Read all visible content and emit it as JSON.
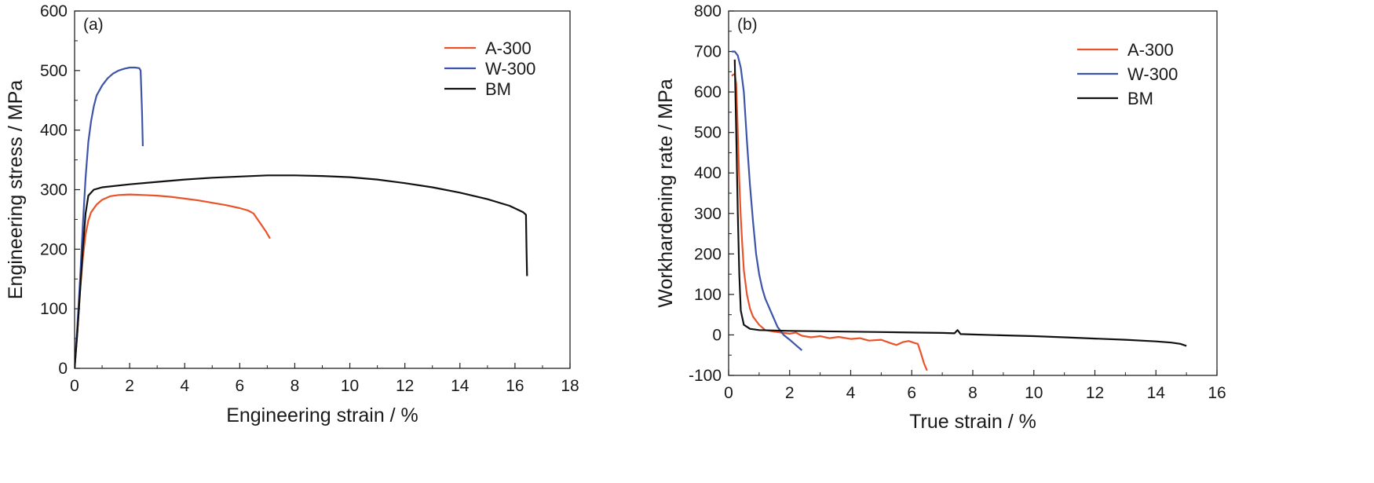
{
  "chart_data": [
    {
      "type": "line",
      "panel_label": "(a)",
      "xlabel": "Engineering strain / %",
      "ylabel": "Engineering stress / MPa",
      "xlim": [
        0,
        18
      ],
      "ylim": [
        0,
        600
      ],
      "xticks": [
        0,
        2,
        4,
        6,
        8,
        10,
        12,
        14,
        16,
        18
      ],
      "yticks": [
        0,
        100,
        200,
        300,
        400,
        500,
        600
      ],
      "legend_position": "top-right",
      "grid": false,
      "series": [
        {
          "name": "A-300",
          "color": "#e8532a",
          "points": [
            [
              0,
              0
            ],
            [
              0.1,
              60
            ],
            [
              0.2,
              130
            ],
            [
              0.3,
              185
            ],
            [
              0.4,
              225
            ],
            [
              0.5,
              248
            ],
            [
              0.6,
              262
            ],
            [
              0.8,
              275
            ],
            [
              1.0,
              283
            ],
            [
              1.3,
              289
            ],
            [
              1.6,
              291
            ],
            [
              2.0,
              292
            ],
            [
              2.5,
              291
            ],
            [
              3.0,
              290
            ],
            [
              3.5,
              288
            ],
            [
              4.0,
              285
            ],
            [
              4.5,
              282
            ],
            [
              5.0,
              278
            ],
            [
              5.5,
              274
            ],
            [
              6.0,
              269
            ],
            [
              6.3,
              265
            ],
            [
              6.5,
              260
            ],
            [
              6.65,
              250
            ],
            [
              6.8,
              240
            ],
            [
              6.95,
              230
            ],
            [
              7.1,
              218
            ]
          ]
        },
        {
          "name": "W-300",
          "color": "#3d54a8",
          "points": [
            [
              0,
              0
            ],
            [
              0.1,
              70
            ],
            [
              0.2,
              150
            ],
            [
              0.3,
              240
            ],
            [
              0.4,
              320
            ],
            [
              0.5,
              380
            ],
            [
              0.6,
              415
            ],
            [
              0.7,
              440
            ],
            [
              0.8,
              458
            ],
            [
              1.0,
              475
            ],
            [
              1.2,
              487
            ],
            [
              1.4,
              495
            ],
            [
              1.6,
              500
            ],
            [
              1.8,
              503
            ],
            [
              2.0,
              505
            ],
            [
              2.2,
              505
            ],
            [
              2.35,
              504
            ],
            [
              2.4,
              500
            ],
            [
              2.45,
              430
            ],
            [
              2.48,
              373
            ]
          ]
        },
        {
          "name": "BM",
          "color": "#111111",
          "points": [
            [
              0,
              0
            ],
            [
              0.1,
              60
            ],
            [
              0.2,
              130
            ],
            [
              0.3,
              200
            ],
            [
              0.4,
              260
            ],
            [
              0.5,
              290
            ],
            [
              0.7,
              300
            ],
            [
              1.0,
              304
            ],
            [
              2.0,
              309
            ],
            [
              3.0,
              313
            ],
            [
              4.0,
              317
            ],
            [
              5.0,
              320
            ],
            [
              6.0,
              322
            ],
            [
              7.0,
              324
            ],
            [
              8.0,
              324
            ],
            [
              9.0,
              323
            ],
            [
              10.0,
              321
            ],
            [
              11.0,
              317
            ],
            [
              12.0,
              311
            ],
            [
              13.0,
              304
            ],
            [
              14.0,
              295
            ],
            [
              15.0,
              284
            ],
            [
              15.8,
              273
            ],
            [
              16.3,
              262
            ],
            [
              16.4,
              258
            ],
            [
              16.42,
              200
            ],
            [
              16.44,
              155
            ]
          ]
        }
      ]
    },
    {
      "type": "line",
      "panel_label": "(b)",
      "xlabel": "True strain / %",
      "ylabel": "Workhardening rate / MPa",
      "xlim": [
        0,
        16
      ],
      "ylim": [
        -100,
        800
      ],
      "xticks": [
        0,
        2,
        4,
        6,
        8,
        10,
        12,
        14,
        16
      ],
      "yticks": [
        -100,
        0,
        100,
        200,
        300,
        400,
        500,
        600,
        700,
        800
      ],
      "legend_position": "top-right",
      "grid": false,
      "series": [
        {
          "name": "A-300",
          "color": "#e8532a",
          "points": [
            [
              0.1,
              640
            ],
            [
              0.2,
              645
            ],
            [
              0.25,
              620
            ],
            [
              0.3,
              500
            ],
            [
              0.35,
              380
            ],
            [
              0.4,
              290
            ],
            [
              0.45,
              220
            ],
            [
              0.5,
              160
            ],
            [
              0.6,
              100
            ],
            [
              0.7,
              65
            ],
            [
              0.8,
              45
            ],
            [
              1.0,
              25
            ],
            [
              1.2,
              12
            ],
            [
              1.5,
              8
            ],
            [
              1.8,
              5
            ],
            [
              2.0,
              3
            ],
            [
              2.2,
              6
            ],
            [
              2.4,
              -2
            ],
            [
              2.7,
              -6
            ],
            [
              3.0,
              -3
            ],
            [
              3.3,
              -8
            ],
            [
              3.6,
              -5
            ],
            [
              4.0,
              -10
            ],
            [
              4.3,
              -8
            ],
            [
              4.6,
              -14
            ],
            [
              5.0,
              -12
            ],
            [
              5.3,
              -20
            ],
            [
              5.5,
              -25
            ],
            [
              5.7,
              -18
            ],
            [
              5.9,
              -15
            ],
            [
              6.1,
              -20
            ],
            [
              6.2,
              -22
            ],
            [
              6.3,
              -45
            ],
            [
              6.4,
              -70
            ],
            [
              6.5,
              -88
            ]
          ]
        },
        {
          "name": "W-300",
          "color": "#3d54a8",
          "points": [
            [
              0.1,
              700
            ],
            [
              0.2,
              700
            ],
            [
              0.3,
              690
            ],
            [
              0.4,
              660
            ],
            [
              0.5,
              600
            ],
            [
              0.6,
              480
            ],
            [
              0.7,
              370
            ],
            [
              0.8,
              280
            ],
            [
              0.9,
              200
            ],
            [
              1.0,
              150
            ],
            [
              1.1,
              115
            ],
            [
              1.2,
              90
            ],
            [
              1.4,
              55
            ],
            [
              1.6,
              20
            ],
            [
              1.8,
              0
            ],
            [
              2.0,
              -12
            ],
            [
              2.2,
              -25
            ],
            [
              2.4,
              -38
            ]
          ]
        },
        {
          "name": "BM",
          "color": "#111111",
          "points": [
            [
              0.2,
              680
            ],
            [
              0.25,
              500
            ],
            [
              0.3,
              300
            ],
            [
              0.35,
              150
            ],
            [
              0.4,
              60
            ],
            [
              0.5,
              25
            ],
            [
              0.7,
              15
            ],
            [
              1.0,
              12
            ],
            [
              2.0,
              10
            ],
            [
              3.0,
              9
            ],
            [
              4.0,
              8
            ],
            [
              5.0,
              7
            ],
            [
              6.0,
              6
            ],
            [
              7.0,
              5
            ],
            [
              7.4,
              4
            ],
            [
              7.5,
              12
            ],
            [
              7.6,
              2
            ],
            [
              8.0,
              1
            ],
            [
              9.0,
              -1
            ],
            [
              10.0,
              -3
            ],
            [
              11.0,
              -6
            ],
            [
              12.0,
              -9
            ],
            [
              13.0,
              -12
            ],
            [
              14.0,
              -16
            ],
            [
              14.5,
              -19
            ],
            [
              14.8,
              -22
            ],
            [
              15.0,
              -27
            ]
          ]
        }
      ]
    }
  ]
}
